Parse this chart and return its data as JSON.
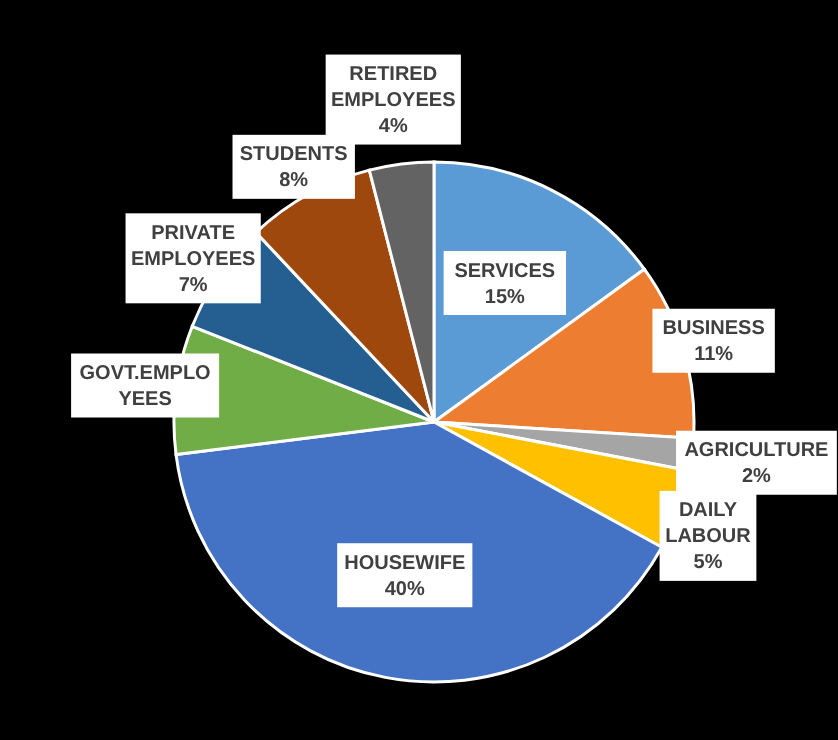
{
  "chart_data": {
    "type": "pie",
    "categories": [
      "SERVICES",
      "BUSINESS",
      "AGRICULTURE",
      "DAILY LABOUR",
      "HOUSEWIFE",
      "GOVT.EMPLOYEES",
      "PRIVATE EMPLOYEES",
      "STUDENTS",
      "RETIRED EMPLOYEES"
    ],
    "values": [
      15,
      11,
      2,
      5,
      40,
      8,
      7,
      8,
      4
    ],
    "value_labels": [
      "15%",
      "11%",
      "2%",
      "5%",
      "40%",
      null,
      "7%",
      "8%",
      "4%"
    ],
    "colors": [
      "#5b9bd5",
      "#ed7d31",
      "#a5a5a5",
      "#ffc000",
      "#4472c4",
      "#70ad47",
      "#255e91",
      "#9e480e",
      "#636363"
    ],
    "legend": false
  }
}
